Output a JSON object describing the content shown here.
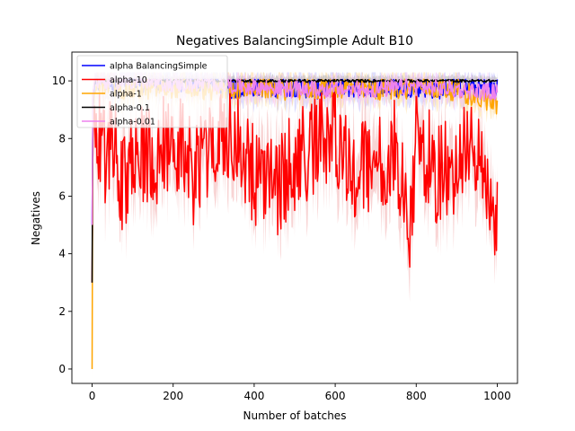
{
  "chart_data": {
    "type": "line",
    "title": "Negatives BalancingSimple Adult B10",
    "xlabel": "Number of batches",
    "ylabel": "Negatives",
    "xlim": [
      -50,
      1050
    ],
    "ylim": [
      -0.5,
      11
    ],
    "xticks": [
      0,
      200,
      400,
      600,
      800,
      1000
    ],
    "yticks": [
      0,
      2,
      4,
      6,
      8,
      10
    ],
    "grid": false,
    "legend_position": "top-left",
    "series": [
      {
        "name": "alpha BalancingSimple",
        "color": "#0000ff",
        "band_color": "#c8c8ff",
        "x": [
          0,
          2,
          5,
          10,
          50,
          100,
          150,
          200,
          250,
          300,
          330,
          340,
          400,
          450,
          500,
          550,
          600,
          650,
          700,
          750,
          800,
          850,
          900,
          950,
          1000
        ],
        "values": [
          5.0,
          9.0,
          9.6,
          9.9,
          9.95,
          9.95,
          9.95,
          9.95,
          9.95,
          9.95,
          9.9,
          9.7,
          9.8,
          9.75,
          9.8,
          9.7,
          9.8,
          9.75,
          9.8,
          9.75,
          9.8,
          9.7,
          9.8,
          9.75,
          9.75
        ]
      },
      {
        "name": "alpha-10",
        "color": "#ff0000",
        "band_color": "#f4b8b8",
        "x": [
          0,
          2,
          5,
          10,
          30,
          50,
          75,
          100,
          150,
          200,
          250,
          300,
          350,
          400,
          450,
          500,
          550,
          600,
          650,
          700,
          750,
          785,
          800,
          850,
          900,
          950,
          980,
          1000
        ],
        "values": [
          3.0,
          8.0,
          9.0,
          8.5,
          7.0,
          8.0,
          6.0,
          7.5,
          7.0,
          8.0,
          6.5,
          7.5,
          8.0,
          6.5,
          6.0,
          7.0,
          7.5,
          8.0,
          6.5,
          7.0,
          7.5,
          4.2,
          8.0,
          6.5,
          7.0,
          7.5,
          5.3,
          5.5
        ]
      },
      {
        "name": "alpha-1",
        "color": "#ffa500",
        "band_color": "#ffdfa0",
        "x": [
          0,
          2,
          5,
          10,
          50,
          100,
          200,
          300,
          400,
          500,
          600,
          700,
          800,
          900,
          1000
        ],
        "values": [
          0.0,
          9.0,
          9.8,
          9.9,
          9.8,
          9.7,
          9.8,
          9.7,
          9.8,
          9.7,
          9.8,
          9.7,
          9.8,
          9.7,
          9.2
        ]
      },
      {
        "name": "alpha-0.1",
        "color": "#000000",
        "band_color": "#bbbbbb",
        "x": [
          0,
          2,
          5,
          10,
          50,
          100,
          200,
          300,
          400,
          500,
          600,
          700,
          800,
          900,
          1000
        ],
        "values": [
          3.0,
          9.5,
          9.9,
          10.0,
          10.0,
          10.0,
          10.0,
          10.0,
          10.0,
          10.0,
          10.0,
          10.0,
          10.0,
          10.0,
          10.0
        ]
      },
      {
        "name": "alpha-0.01",
        "color": "#ee82ee",
        "band_color": "#f6c8f6",
        "x": [
          0,
          2,
          5,
          10,
          50,
          100,
          200,
          300,
          400,
          500,
          600,
          700,
          800,
          900,
          1000
        ],
        "values": [
          5.0,
          9.5,
          9.9,
          10.0,
          10.0,
          10.0,
          9.9,
          9.9,
          9.8,
          9.7,
          9.7,
          9.7,
          9.8,
          9.7,
          9.6
        ]
      }
    ]
  }
}
